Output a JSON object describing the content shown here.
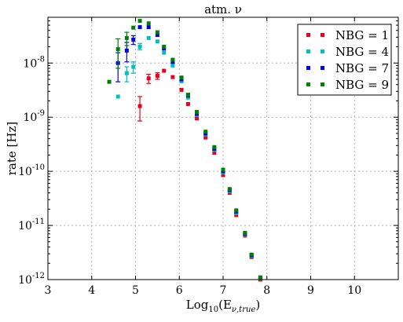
{
  "chart_data": {
    "type": "scatter",
    "title": "atm. ν",
    "xlabel_base": "Log",
    "xlabel_sub": "10",
    "xlabel_arg": "(E",
    "xlabel_argsub": "ν,true",
    "xlabel_close": ")",
    "ylabel": "rate [Hz]",
    "xlim": [
      3,
      11
    ],
    "ylim": [
      1e-12,
      7e-08
    ],
    "yscale": "log",
    "grid": true,
    "legend_position": "top-right",
    "xticks": [
      3,
      4,
      5,
      6,
      7,
      8,
      9,
      10
    ],
    "yticks": [
      {
        "value": 1e-08,
        "base": "10",
        "exp": "-8"
      },
      {
        "value": 1e-09,
        "base": "10",
        "exp": "-9"
      },
      {
        "value": 1e-10,
        "base": "10",
        "exp": "-10"
      },
      {
        "value": 1e-11,
        "base": "10",
        "exp": "-11"
      },
      {
        "value": 1e-12,
        "base": "10",
        "exp": "-12"
      }
    ],
    "series": [
      {
        "name": "NBG = 1",
        "color": "#e8001c",
        "points": [
          {
            "x": 5.1,
            "y": 1.6e-09,
            "lo": 8.5e-10,
            "hi": 2.4e-09
          },
          {
            "x": 5.3,
            "y": 5.2e-09,
            "lo": 4.2e-09,
            "hi": 6.2e-09
          },
          {
            "x": 5.5,
            "y": 5.8e-09,
            "lo": 5e-09,
            "hi": 6.6e-09
          },
          {
            "x": 5.65,
            "y": 7.2e-09
          },
          {
            "x": 5.85,
            "y": 5.5e-09
          },
          {
            "x": 6.05,
            "y": 3.2e-09
          },
          {
            "x": 6.2,
            "y": 1.75e-09
          },
          {
            "x": 6.4,
            "y": 9.5e-10
          },
          {
            "x": 6.6,
            "y": 4.2e-10
          },
          {
            "x": 6.8,
            "y": 2.2e-10
          },
          {
            "x": 7.0,
            "y": 8.5e-11
          },
          {
            "x": 7.15,
            "y": 4e-11
          },
          {
            "x": 7.3,
            "y": 1.55e-11
          },
          {
            "x": 7.5,
            "y": 6.5e-12
          },
          {
            "x": 7.65,
            "y": 2.6e-12
          },
          {
            "x": 7.85,
            "y": 1e-12
          }
        ]
      },
      {
        "name": "NBG = 4",
        "color": "#00bfbf",
        "points": [
          {
            "x": 4.6,
            "y": 2.4e-09
          },
          {
            "x": 4.8,
            "y": 6.5e-09,
            "lo": 4.5e-09,
            "hi": 8.5e-09
          },
          {
            "x": 4.95,
            "y": 8.5e-09,
            "lo": 6.5e-09,
            "hi": 1.05e-08
          },
          {
            "x": 5.1,
            "y": 2e-08,
            "lo": 1.75e-08,
            "hi": 2.3e-08
          },
          {
            "x": 5.3,
            "y": 2.9e-08
          },
          {
            "x": 5.5,
            "y": 2.5e-08
          },
          {
            "x": 5.65,
            "y": 1.55e-08
          },
          {
            "x": 5.85,
            "y": 9e-09
          },
          {
            "x": 6.05,
            "y": 4.6e-09
          },
          {
            "x": 6.2,
            "y": 2.3e-09
          },
          {
            "x": 6.4,
            "y": 1.1e-09
          },
          {
            "x": 6.6,
            "y": 4.8e-10
          },
          {
            "x": 6.8,
            "y": 2.5e-10
          },
          {
            "x": 7.0,
            "y": 9.5e-11
          },
          {
            "x": 7.15,
            "y": 4.3e-11
          },
          {
            "x": 7.3,
            "y": 1.7e-11
          },
          {
            "x": 7.5,
            "y": 6.8e-12
          },
          {
            "x": 7.65,
            "y": 2.7e-12
          },
          {
            "x": 7.85,
            "y": 1.05e-12
          }
        ]
      },
      {
        "name": "NBG = 7",
        "color": "#0000e8",
        "points": [
          {
            "x": 4.6,
            "y": 1e-08,
            "lo": 4.5e-09,
            "hi": 1.55e-08
          },
          {
            "x": 4.8,
            "y": 1.7e-08,
            "lo": 1.05e-08,
            "hi": 2.4e-08
          },
          {
            "x": 4.95,
            "y": 2.7e-08,
            "lo": 2.2e-08,
            "hi": 3.2e-08
          },
          {
            "x": 5.1,
            "y": 4.6e-08
          },
          {
            "x": 5.3,
            "y": 4.6e-08
          },
          {
            "x": 5.5,
            "y": 3.3e-08
          },
          {
            "x": 5.65,
            "y": 1.85e-08
          },
          {
            "x": 5.85,
            "y": 1.05e-08
          },
          {
            "x": 6.05,
            "y": 5e-09
          },
          {
            "x": 6.2,
            "y": 2.5e-09
          },
          {
            "x": 6.4,
            "y": 1.15e-09
          },
          {
            "x": 6.6,
            "y": 5e-10
          },
          {
            "x": 6.8,
            "y": 2.6e-10
          },
          {
            "x": 7.0,
            "y": 1e-10
          },
          {
            "x": 7.15,
            "y": 4.5e-11
          },
          {
            "x": 7.3,
            "y": 1.8e-11
          },
          {
            "x": 7.5,
            "y": 7e-12
          },
          {
            "x": 7.65,
            "y": 2.8e-12
          },
          {
            "x": 7.85,
            "y": 1.08e-12
          }
        ]
      },
      {
        "name": "NBG = 9",
        "color": "#008000",
        "points": [
          {
            "x": 4.4,
            "y": 4.5e-09
          },
          {
            "x": 4.6,
            "y": 1.8e-08,
            "lo": 8e-09,
            "hi": 2.8e-08
          },
          {
            "x": 4.8,
            "y": 2.9e-08,
            "lo": 2.1e-08,
            "hi": 3.7e-08
          },
          {
            "x": 4.95,
            "y": 4.5e-08
          },
          {
            "x": 5.1,
            "y": 6e-08
          },
          {
            "x": 5.3,
            "y": 5.4e-08
          },
          {
            "x": 5.5,
            "y": 3.7e-08
          },
          {
            "x": 5.65,
            "y": 2e-08
          },
          {
            "x": 5.85,
            "y": 1.15e-08
          },
          {
            "x": 6.05,
            "y": 5.4e-09
          },
          {
            "x": 6.2,
            "y": 2.6e-09
          },
          {
            "x": 6.4,
            "y": 1.25e-09
          },
          {
            "x": 6.6,
            "y": 5.4e-10
          },
          {
            "x": 6.8,
            "y": 2.8e-10
          },
          {
            "x": 7.0,
            "y": 1.07e-10
          },
          {
            "x": 7.15,
            "y": 4.7e-11
          },
          {
            "x": 7.3,
            "y": 1.9e-11
          },
          {
            "x": 7.5,
            "y": 7.3e-12
          },
          {
            "x": 7.65,
            "y": 2.9e-12
          },
          {
            "x": 7.85,
            "y": 1.1e-12
          }
        ]
      }
    ]
  }
}
